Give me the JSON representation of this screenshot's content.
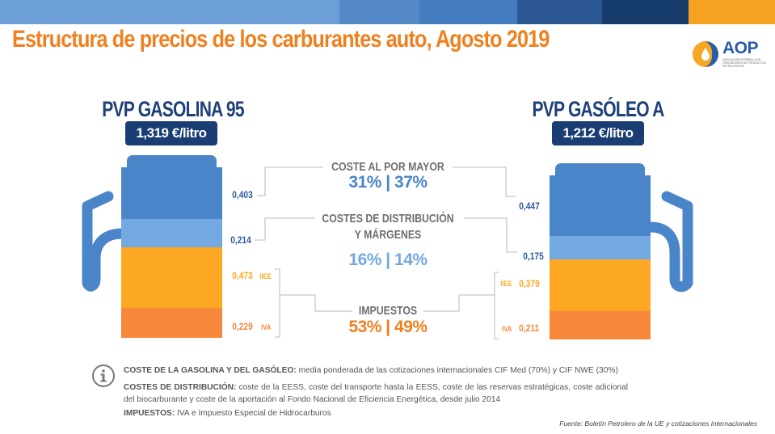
{
  "header": {
    "title": "Estructura de precios de los carburantes auto, Agosto 2019",
    "top_bar_colors": [
      "#6c9fd6",
      "#5689c8",
      "#447cc0",
      "#2b5892",
      "#163c6c",
      "#f4a21f"
    ]
  },
  "logo": {
    "name": "AOP",
    "subtitle": "ASOCIACIÓN ESPAÑOLA DE OPERADORES DE PRODUCTOS PETROLÍFEROS"
  },
  "colors": {
    "wholesale": "#4a84c9",
    "distribution": "#73a8e0",
    "iiee": "#fca823",
    "iva": "#f7873a",
    "title": "#f07f1e",
    "navy": "#1a3d73",
    "label_gray": "#6d6e71"
  },
  "fuels": [
    {
      "name": "PVP GASOLINA 95",
      "price": "1,319 €/litro",
      "components": [
        {
          "key": "wholesale",
          "value": "0,403"
        },
        {
          "key": "distribution",
          "value": "0,214"
        },
        {
          "key": "iiee",
          "value": "0,473",
          "tag": "IIEE"
        },
        {
          "key": "iva",
          "value": "0,229",
          "tag": "IVA"
        }
      ]
    },
    {
      "name": "PVP GASÓLEO A",
      "price": "1,212 €/litro",
      "components": [
        {
          "key": "wholesale",
          "value": "0,447"
        },
        {
          "key": "distribution",
          "value": "0,175"
        },
        {
          "key": "iiee",
          "value": "0,379",
          "tag": "IIEE"
        },
        {
          "key": "iva",
          "value": "0,211",
          "tag": "IVA"
        }
      ]
    }
  ],
  "categories": [
    {
      "label_lines": [
        "COSTE AL POR MAYOR"
      ],
      "percent": "31% | 37%"
    },
    {
      "label_lines": [
        "COSTES DE DISTRIBUCIÓN",
        "Y MÁRGENES"
      ],
      "percent": "16% | 14%"
    },
    {
      "label_lines": [
        "IMPUESTOS"
      ],
      "percent": "53% | 49%"
    }
  ],
  "notes": [
    {
      "bold": "COSTE DE LA GASOLINA Y DEL GASÓLEO:",
      "text": " media ponderada de las cotizaciones internacionales CIF Med (70%) y CIF NWE (30%)"
    },
    {
      "bold": "COSTES DE DISTRIBUCIÓN:",
      "text": " coste de la EESS, coste del transporte hasta la EESS, coste de las reservas estratégicas, coste adicional del biocarburante y coste de la aportación al Fondo Nacional de Eficiencia Energética, desde julio 2014"
    },
    {
      "bold": "IMPUESTOS:",
      "text": " IVA e Impuesto Especial de Hidrocarburos"
    }
  ],
  "info_icon": "info-icon",
  "source": "Fuente: Boletín Petrolero de la UE y cotizaciones internacionales",
  "chart_data": {
    "type": "bar",
    "title": "Estructura de precios de los carburantes auto, Agosto 2019",
    "categories": [
      "PVP GASOLINA 95",
      "PVP GASÓLEO A"
    ],
    "stacked": true,
    "unit": "€/litro",
    "totals": [
      1.319,
      1.212
    ],
    "series": [
      {
        "name": "Coste al por mayor",
        "values": [
          0.403,
          0.447
        ]
      },
      {
        "name": "Costes de distribución y márgenes",
        "values": [
          0.214,
          0.175
        ]
      },
      {
        "name": "IIEE",
        "values": [
          0.473,
          0.379
        ]
      },
      {
        "name": "IVA",
        "values": [
          0.229,
          0.211
        ]
      }
    ],
    "shares_percent": {
      "Coste al por mayor": [
        31,
        37
      ],
      "Costes de distribución y márgenes": [
        16,
        14
      ],
      "Impuestos": [
        53,
        49
      ]
    }
  }
}
